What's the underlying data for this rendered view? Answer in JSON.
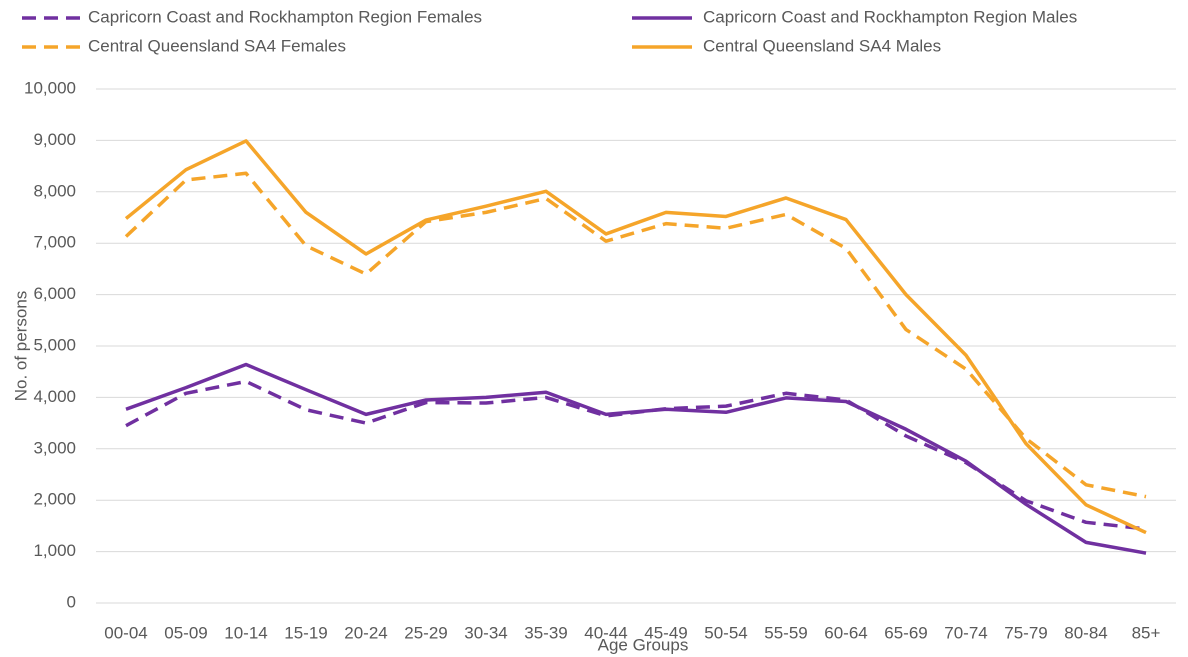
{
  "chart_data": {
    "type": "line",
    "x_label": "Age Groups",
    "y_label": "No. of persons",
    "categories": [
      "00-04",
      "05-09",
      "10-14",
      "15-19",
      "20-24",
      "25-29",
      "30-34",
      "35-39",
      "40-44",
      "45-49",
      "50-54",
      "55-59",
      "60-64",
      "65-69",
      "70-74",
      "75-79",
      "80-84",
      "85+"
    ],
    "series": [
      {
        "name": "Capricorn Coast and Rockhampton Region Females",
        "color": "#7030a0",
        "dashed": true,
        "values": [
          3450,
          4080,
          4310,
          3760,
          3500,
          3900,
          3890,
          4000,
          3640,
          3780,
          3830,
          4080,
          3950,
          3250,
          2730,
          1990,
          1570,
          1440
        ]
      },
      {
        "name": "Capricorn Coast and Rockhampton Region Males",
        "color": "#7030a0",
        "dashed": false,
        "values": [
          3770,
          4190,
          4640,
          4150,
          3670,
          3950,
          4000,
          4100,
          3670,
          3770,
          3710,
          3990,
          3920,
          3380,
          2760,
          1920,
          1180,
          970
        ]
      },
      {
        "name": "Central Queensland SA4 Females",
        "color": "#f5a52a",
        "dashed": true,
        "values": [
          7130,
          8230,
          8360,
          6950,
          6400,
          7420,
          7600,
          7870,
          7040,
          7380,
          7290,
          7560,
          6900,
          5320,
          4550,
          3200,
          2300,
          2070
        ]
      },
      {
        "name": "Central Queensland SA4 Males",
        "color": "#f5a52a",
        "dashed": false,
        "values": [
          7480,
          8430,
          8990,
          7600,
          6790,
          7450,
          7720,
          8010,
          7180,
          7600,
          7520,
          7880,
          7460,
          6000,
          4820,
          3100,
          1910,
          1370
        ]
      }
    ],
    "ylim": [
      0,
      10000
    ],
    "yticks": [
      0,
      {
        "value": 1000,
        "label": "1,000"
      },
      {
        "value": 2000,
        "label": "2,000"
      },
      {
        "value": 3000,
        "label": "3,000"
      },
      {
        "value": 4000,
        "label": "4,000"
      },
      {
        "value": 5000,
        "label": "5,000"
      },
      {
        "value": 6000,
        "label": "6,000"
      },
      {
        "value": 7000,
        "label": "7,000"
      },
      {
        "value": 8000,
        "label": "8,000"
      },
      {
        "value": 9000,
        "label": "9,000"
      },
      {
        "value": 10000,
        "label": "10,000"
      }
    ],
    "grid": true,
    "legend": "top"
  }
}
